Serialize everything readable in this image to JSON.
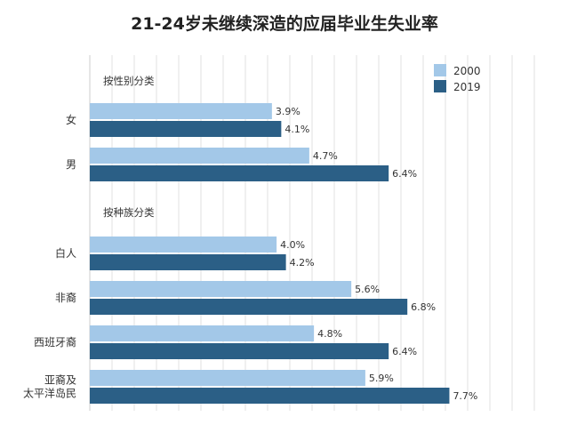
{
  "chart_data": {
    "type": "bar",
    "orientation": "horizontal",
    "title": "21-24岁未继续深造的应届毕业生失业率",
    "groups": [
      {
        "label": "按性别分类",
        "categories": [
          "女",
          "男"
        ]
      },
      {
        "label": "按种族分类",
        "categories": [
          "白人",
          "非裔",
          "西班牙裔",
          "亚裔及\n太平洋岛民"
        ]
      }
    ],
    "categories": [
      "女",
      "男",
      "白人",
      "非裔",
      "西班牙裔",
      "亚裔及\n太平洋岛民"
    ],
    "series": [
      {
        "name": "2000",
        "color": "#a3c8e8",
        "values": [
          3.9,
          4.7,
          4.0,
          5.6,
          4.8,
          5.9
        ],
        "labels": [
          "3.9%",
          "4.7%",
          "4.0%",
          "5.6%",
          "4.8%",
          "5.9%"
        ]
      },
      {
        "name": "2019",
        "color": "#2b5f86",
        "values": [
          4.1,
          6.4,
          4.2,
          6.8,
          6.4,
          7.7
        ],
        "labels": [
          "4.1%",
          "6.4%",
          "4.2%",
          "6.8%",
          "6.4%",
          "7.7%"
        ]
      }
    ],
    "xlim": [
      0,
      9.5
    ],
    "grid": true,
    "legend": "top-right"
  }
}
